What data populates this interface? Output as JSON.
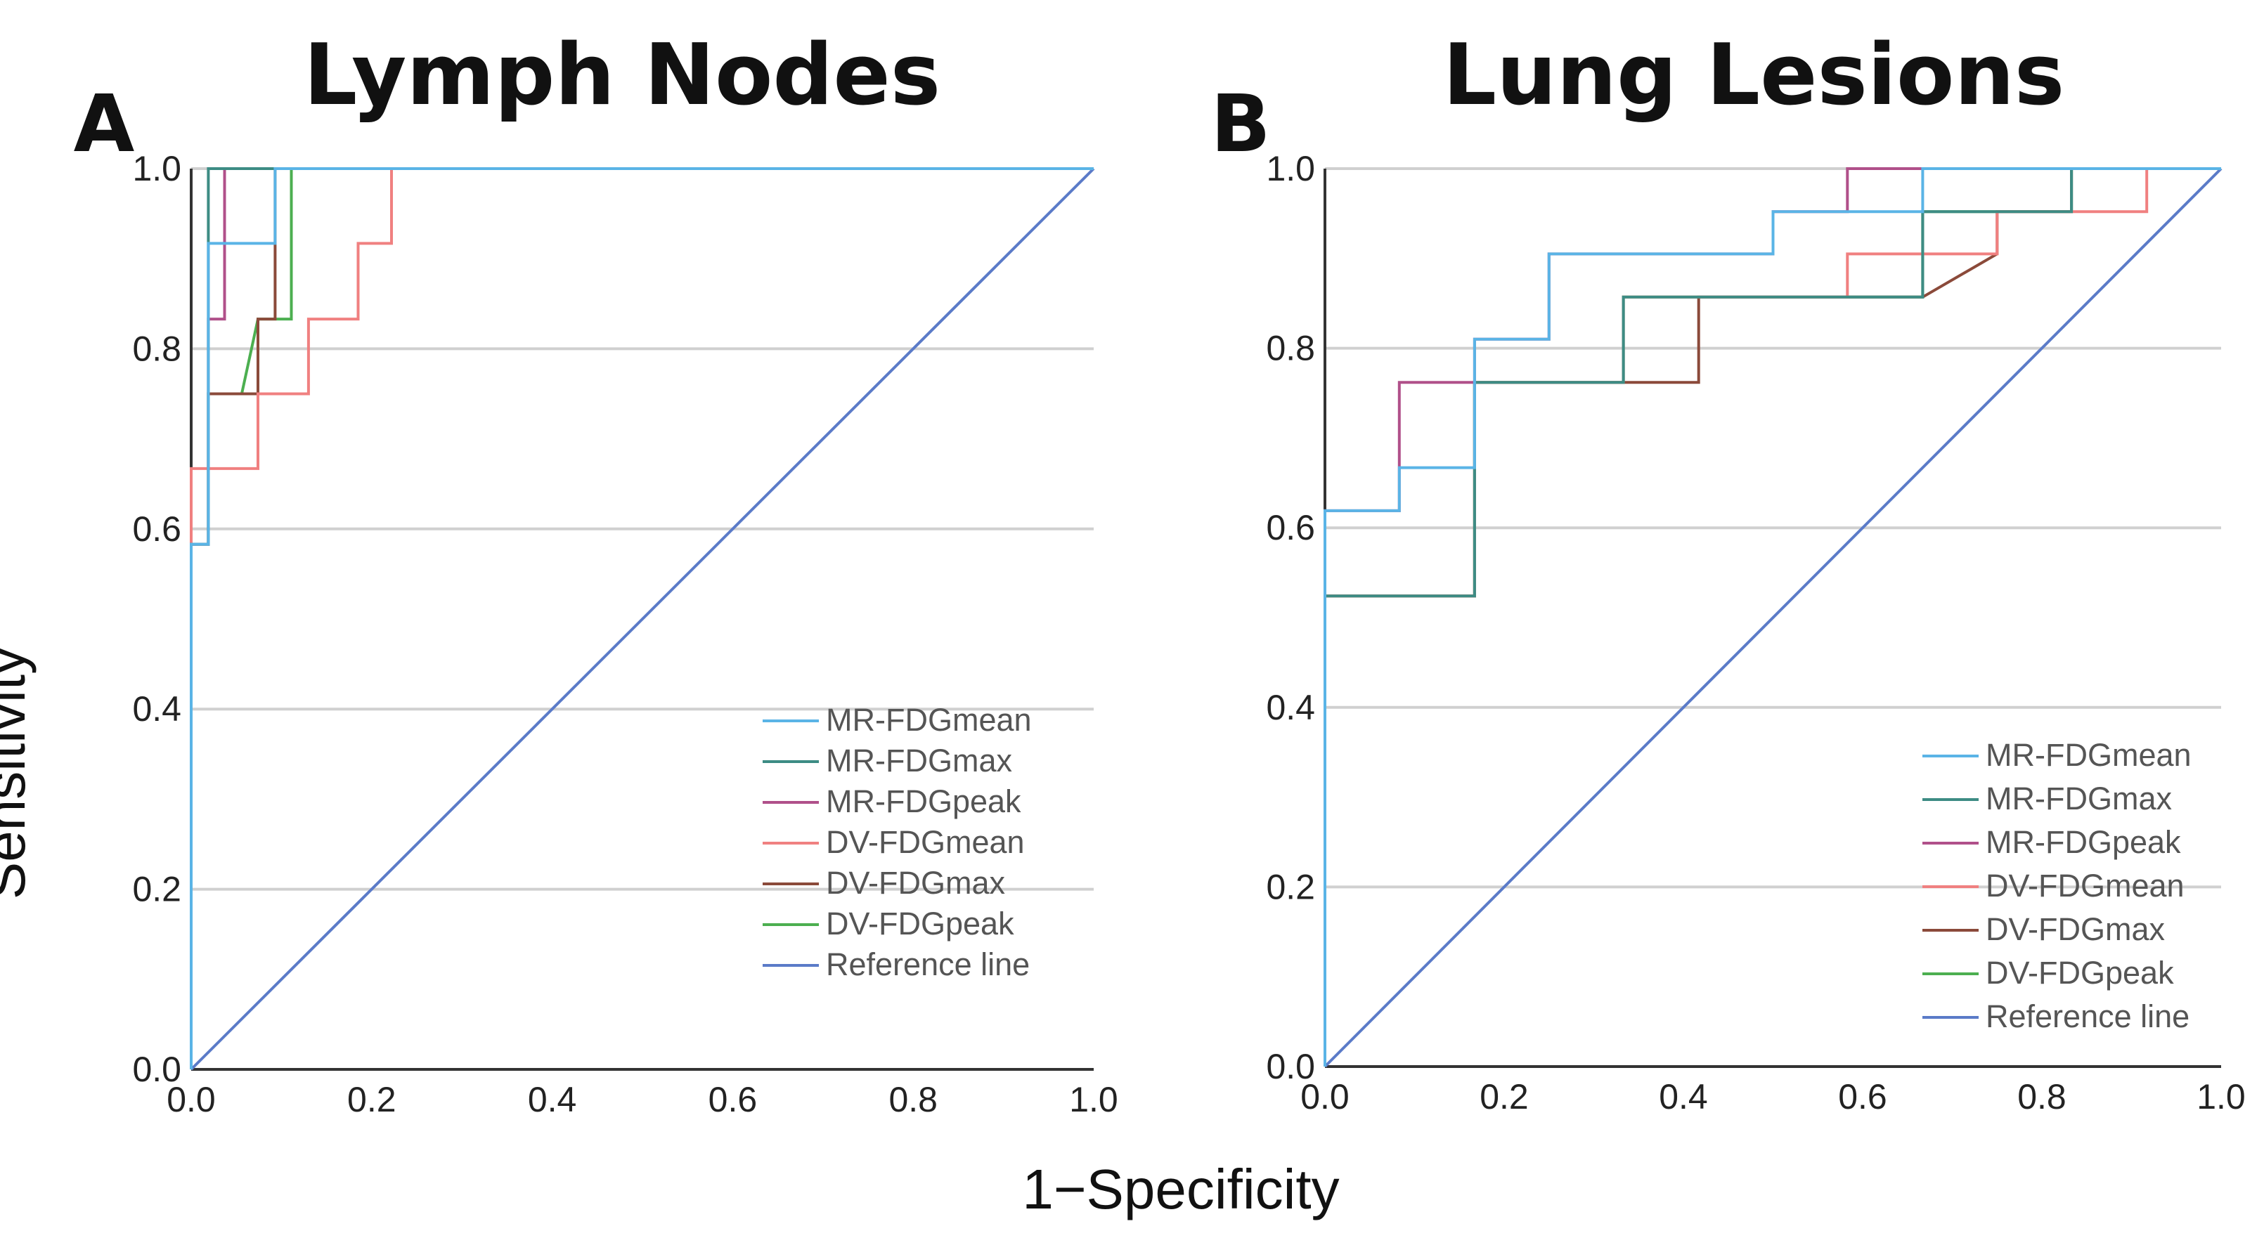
{
  "figure": {
    "xlabel": "1−Specificity",
    "ylabel": "Sensitivity"
  },
  "chart_data": [
    {
      "type": "line",
      "panel": "A",
      "title": "Lymph Nodes",
      "xlabel": "1−Specificity",
      "ylabel": "Sensitivity",
      "xlim": [
        0,
        1
      ],
      "ylim": [
        0,
        1
      ],
      "grid": "horizontal",
      "xticks": [
        "0.0",
        "0.2",
        "0.4",
        "0.6",
        "0.8",
        "1.0"
      ],
      "yticks": [
        "0.0",
        "0.2",
        "0.4",
        "0.6",
        "0.8",
        "1.0"
      ],
      "legend_position": "bottom-right",
      "series": [
        {
          "name": "MR-FDGmean",
          "color": "#5ab4e6",
          "x": [
            0,
            0,
            0.019,
            0.019,
            0.093,
            0.093,
            1
          ],
          "y": [
            0,
            0.583,
            0.583,
            0.917,
            0.917,
            1,
            1
          ]
        },
        {
          "name": "MR-FDGmax",
          "color": "#3d8c84",
          "x": [
            0,
            0,
            0.019,
            0.019,
            1
          ],
          "y": [
            0,
            0.583,
            0.583,
            1,
            1
          ]
        },
        {
          "name": "MR-FDGpeak",
          "color": "#b0508a",
          "x": [
            0,
            0,
            0.019,
            0.019,
            0.037,
            0.037,
            1
          ],
          "y": [
            0,
            0.583,
            0.583,
            0.833,
            0.833,
            1,
            1
          ]
        },
        {
          "name": "DV-FDGmean",
          "color": "#f08080",
          "x": [
            0,
            0,
            0.074,
            0.074,
            0.13,
            0.13,
            0.185,
            0.185,
            0.222,
            0.222,
            1
          ],
          "y": [
            0,
            0.667,
            0.667,
            0.75,
            0.75,
            0.833,
            0.833,
            0.917,
            0.917,
            1,
            1
          ]
        },
        {
          "name": "DV-FDGmax",
          "color": "#8b4a3a",
          "x": [
            0,
            0,
            0.019,
            0.019,
            0.074,
            0.074,
            0.093,
            0.093,
            1
          ],
          "y": [
            0,
            0.583,
            0.583,
            0.75,
            0.75,
            0.833,
            0.833,
            1,
            1
          ]
        },
        {
          "name": "DV-FDGpeak",
          "color": "#4caf50",
          "x": [
            0,
            0,
            0.019,
            0.019,
            0.056,
            0.074,
            0.111,
            0.111,
            1
          ],
          "y": [
            0,
            0.583,
            0.583,
            0.75,
            0.75,
            0.833,
            0.833,
            1,
            1
          ]
        },
        {
          "name": "Reference line",
          "color": "#5b7bc8",
          "x": [
            0,
            1
          ],
          "y": [
            0,
            1
          ]
        }
      ]
    },
    {
      "type": "line",
      "panel": "B",
      "title": "Lung Lesions",
      "xlabel": "1−Specificity",
      "ylabel": "Sensitivity",
      "xlim": [
        0,
        1
      ],
      "ylim": [
        0,
        1
      ],
      "grid": "horizontal",
      "xticks": [
        "0.0",
        "0.2",
        "0.4",
        "0.6",
        "0.8",
        "1.0"
      ],
      "yticks": [
        "0.0",
        "0.2",
        "0.4",
        "0.6",
        "0.8",
        "1.0"
      ],
      "legend_position": "bottom-right",
      "series": [
        {
          "name": "MR-FDGmean",
          "color": "#5ab4e6",
          "x": [
            0,
            0,
            0.083,
            0.083,
            0.167,
            0.167,
            0.25,
            0.25,
            0.5,
            0.5,
            0.667,
            0.667,
            1
          ],
          "y": [
            0,
            0.619,
            0.619,
            0.667,
            0.667,
            0.81,
            0.81,
            0.905,
            0.905,
            0.952,
            0.952,
            1,
            1
          ]
        },
        {
          "name": "MR-FDGmax",
          "color": "#3d8c84",
          "x": [
            0,
            0,
            0.167,
            0.167,
            0.333,
            0.333,
            0.667,
            0.667,
            0.833,
            0.833,
            1
          ],
          "y": [
            0,
            0.524,
            0.524,
            0.762,
            0.762,
            0.857,
            0.857,
            0.952,
            0.952,
            1,
            1
          ]
        },
        {
          "name": "MR-FDGpeak",
          "color": "#b0508a",
          "x": [
            0,
            0,
            0.083,
            0.083,
            0.167,
            0.167,
            0.25,
            0.25,
            0.5,
            0.5,
            0.583,
            0.583,
            1
          ],
          "y": [
            0,
            0.619,
            0.619,
            0.762,
            0.762,
            0.81,
            0.81,
            0.905,
            0.905,
            0.952,
            0.952,
            1,
            1
          ]
        },
        {
          "name": "DV-FDGmean",
          "color": "#f08080",
          "x": [
            0,
            0,
            0.167,
            0.167,
            0.333,
            0.333,
            0.583,
            0.583,
            0.75,
            0.75,
            0.917,
            0.917,
            1
          ],
          "y": [
            0,
            0.524,
            0.524,
            0.762,
            0.762,
            0.857,
            0.857,
            0.905,
            0.905,
            0.952,
            0.952,
            1,
            1
          ]
        },
        {
          "name": "DV-FDGmax",
          "color": "#8b4a3a",
          "x": [
            0,
            0,
            0.167,
            0.167,
            0.417,
            0.417,
            0.667,
            0.75,
            0.75,
            0.833,
            0.833,
            1
          ],
          "y": [
            0,
            0.524,
            0.524,
            0.762,
            0.762,
            0.857,
            0.857,
            0.905,
            0.952,
            0.952,
            1,
            1
          ]
        },
        {
          "name": "DV-FDGpeak",
          "color": "#4caf50",
          "x": [
            0,
            0,
            0.167,
            0.167,
            0.333,
            0.333,
            0.667,
            0.667,
            0.833,
            0.833,
            1
          ],
          "y": [
            0,
            0.524,
            0.524,
            0.762,
            0.762,
            0.857,
            0.857,
            0.952,
            0.952,
            1,
            1
          ]
        },
        {
          "name": "Reference line",
          "color": "#5b7bc8",
          "x": [
            0,
            1
          ],
          "y": [
            0,
            1
          ]
        }
      ]
    }
  ]
}
